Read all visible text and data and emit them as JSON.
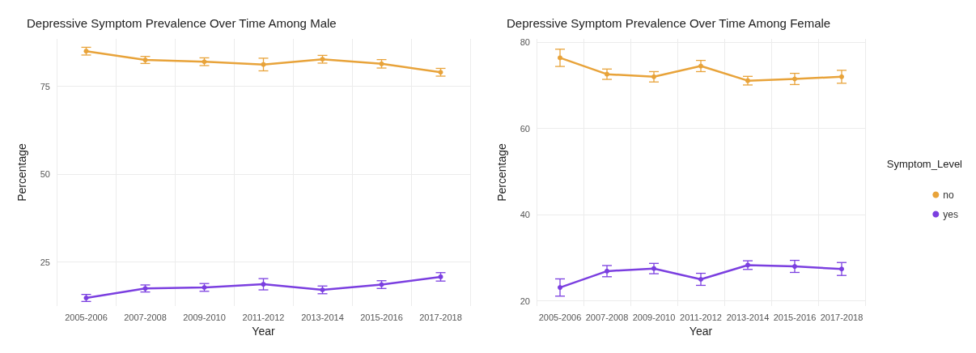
{
  "chart_data": [
    {
      "type": "line",
      "title": "Depressive Symptom Prevalence Over Time Among Male",
      "xlabel": "Year",
      "ylabel": "Percentage",
      "categories": [
        "2005-2006",
        "2007-2008",
        "2009-2010",
        "2011-2012",
        "2013-2014",
        "2015-2016",
        "2017-2018"
      ],
      "ylim": [
        12.5,
        88.5
      ],
      "yticks": [
        25,
        50,
        75
      ],
      "grid": true,
      "legend": false,
      "marker": "circle",
      "series": [
        {
          "color": "#e8a33a",
          "values": [
            85.0,
            82.5,
            82.0,
            81.2,
            82.7,
            81.4,
            79.0
          ],
          "errors": [
            1.1,
            1.0,
            1.1,
            1.8,
            1.1,
            1.2,
            1.1
          ]
        },
        {
          "color": "#7b3fe0",
          "values": [
            14.8,
            17.5,
            17.8,
            18.7,
            17.1,
            18.6,
            20.8
          ],
          "errors": [
            1.0,
            1.0,
            1.1,
            1.6,
            1.1,
            1.1,
            1.2
          ]
        }
      ]
    },
    {
      "type": "line",
      "title": "Depressive Symptom Prevalence Over Time Among Female",
      "xlabel": "Year",
      "ylabel": "Percentage",
      "categories": [
        "2005-2006",
        "2007-2008",
        "2009-2010",
        "2011-2012",
        "2013-2014",
        "2015-2016",
        "2017-2018"
      ],
      "ylim": [
        18.8,
        80.8
      ],
      "yticks": [
        20,
        40,
        60,
        80
      ],
      "grid": true,
      "legend": "right",
      "legend_title": "Symptom_Level",
      "marker": "circle",
      "series": [
        {
          "name": "no",
          "color": "#e8a33a",
          "values": [
            76.4,
            72.6,
            72.0,
            74.5,
            71.1,
            71.5,
            72.0
          ],
          "errors": [
            2.0,
            1.2,
            1.2,
            1.3,
            1.0,
            1.3,
            1.5
          ]
        },
        {
          "name": "yes",
          "color": "#7b3fe0",
          "values": [
            23.1,
            26.9,
            27.5,
            25.0,
            28.3,
            28.0,
            27.4
          ],
          "errors": [
            2.0,
            1.3,
            1.2,
            1.4,
            1.0,
            1.4,
            1.5
          ]
        }
      ]
    }
  ]
}
